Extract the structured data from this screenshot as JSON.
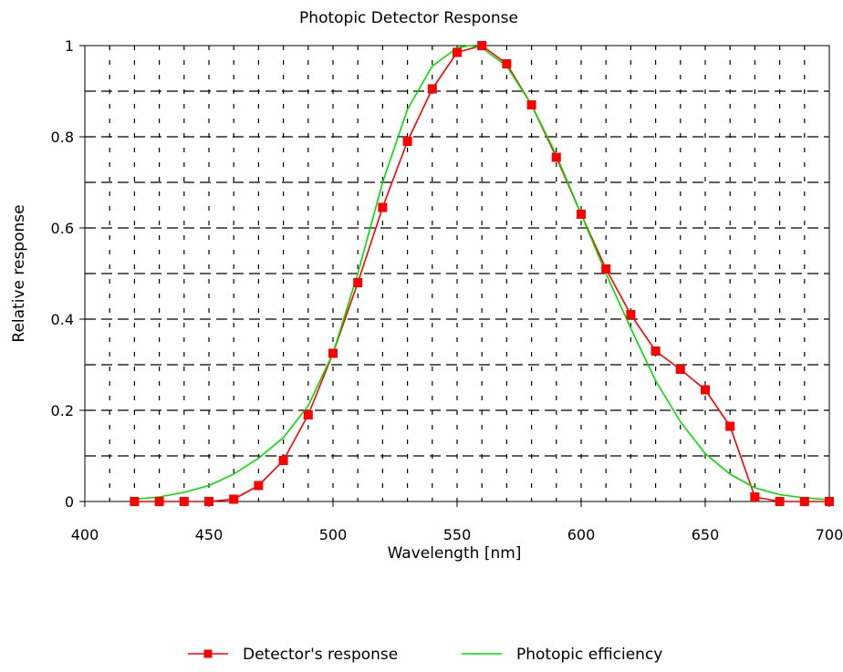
{
  "chart_data": {
    "type": "line",
    "title": "Photopic Detector Response",
    "xlabel": "Wavelength [nm]",
    "ylabel": "Relative response",
    "xlim": [
      400,
      700
    ],
    "ylim": [
      0,
      1
    ],
    "x_ticks": [
      "400",
      "450",
      "500",
      "550",
      "600",
      "650",
      "700"
    ],
    "y_ticks": [
      "0",
      "0.2",
      "0.4",
      "0.6",
      "0.8",
      "1"
    ],
    "grid": "on",
    "legend_position": "bottom-center",
    "series": [
      {
        "name": "Detector's response",
        "color": "#ff0000",
        "marker": "square",
        "x": [
          420,
          430,
          440,
          450,
          460,
          470,
          480,
          490,
          500,
          510,
          520,
          530,
          540,
          550,
          560,
          570,
          580,
          590,
          600,
          610,
          620,
          630,
          640,
          650,
          660,
          670,
          680,
          690,
          700
        ],
        "y": [
          0.0,
          0.0,
          0.0,
          0.0,
          0.005,
          0.035,
          0.09,
          0.19,
          0.325,
          0.48,
          0.645,
          0.79,
          0.905,
          0.985,
          1.0,
          0.96,
          0.87,
          0.755,
          0.63,
          0.51,
          0.41,
          0.33,
          0.29,
          0.245,
          0.165,
          0.01,
          0.0,
          0.0,
          0.0
        ]
      },
      {
        "name": "Photopic efficiency",
        "color": "#00e000",
        "marker": "none",
        "x": [
          420,
          430,
          440,
          450,
          460,
          470,
          480,
          490,
          500,
          510,
          520,
          530,
          540,
          550,
          555,
          560,
          570,
          580,
          590,
          600,
          610,
          620,
          630,
          640,
          650,
          660,
          670,
          680,
          690,
          700
        ],
        "y": [
          0.005,
          0.01,
          0.02,
          0.035,
          0.06,
          0.095,
          0.14,
          0.21,
          0.325,
          0.5,
          0.7,
          0.86,
          0.955,
          0.995,
          1.0,
          0.995,
          0.955,
          0.87,
          0.76,
          0.63,
          0.5,
          0.38,
          0.265,
          0.175,
          0.105,
          0.06,
          0.03,
          0.015,
          0.008,
          0.004
        ]
      }
    ]
  }
}
